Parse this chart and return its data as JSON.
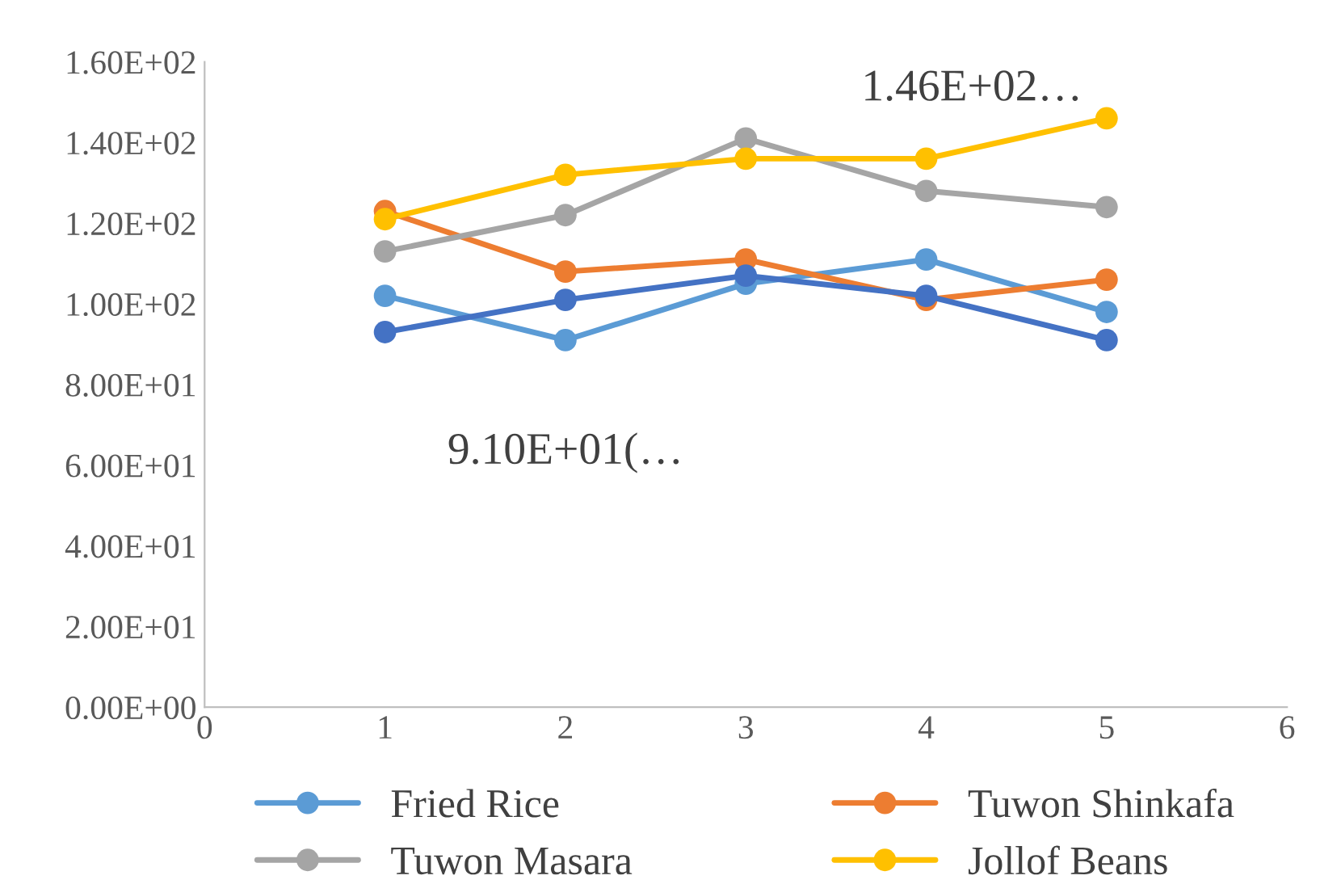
{
  "chart_data": {
    "type": "line",
    "x": [
      1,
      2,
      3,
      4,
      5
    ],
    "series": [
      {
        "name": "Fried Rice",
        "color": "#5b9bd5",
        "values": [
          102,
          91,
          105,
          111,
          98
        ]
      },
      {
        "name": "Tuwon Shinkafa",
        "color": "#ed7d31",
        "values": [
          123,
          108,
          111,
          101,
          106
        ]
      },
      {
        "name": "Tuwon Masara",
        "color": "#a5a5a5",
        "values": [
          113,
          122,
          141,
          128,
          124
        ]
      },
      {
        "name": "Jollof Beans",
        "color": "#ffc000",
        "values": [
          121,
          132,
          136,
          136,
          146
        ]
      },
      {
        "color": "#4472c4",
        "values": [
          93,
          101,
          107,
          102,
          91
        ]
      }
    ],
    "xlim": [
      0,
      6
    ],
    "xticks": [
      0,
      1,
      2,
      3,
      4,
      5,
      6
    ],
    "ylim": [
      0,
      160
    ],
    "yticks": [
      {
        "value": 0,
        "label": "0.00E+00"
      },
      {
        "value": 20,
        "label": "2.00E+01"
      },
      {
        "value": 40,
        "label": "4.00E+01"
      },
      {
        "value": 60,
        "label": "6.00E+01"
      },
      {
        "value": 80,
        "label": "8.00E+01"
      },
      {
        "value": 100,
        "label": "1.00E+02"
      },
      {
        "value": 120,
        "label": "1.20E+02"
      },
      {
        "value": 140,
        "label": "1.40E+02"
      },
      {
        "value": 160,
        "label": "1.60E+02"
      }
    ],
    "annotations": [
      {
        "text": "9.10E+01(…",
        "x": 2,
        "y": 91
      },
      {
        "text": "1.46E+02…",
        "x": 5,
        "y": 146
      }
    ],
    "grid": false,
    "legend": "bottom",
    "marker": "circle",
    "line_style": "solid"
  }
}
